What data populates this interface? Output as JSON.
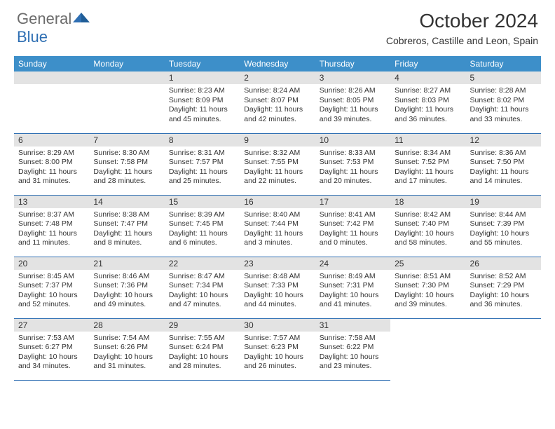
{
  "logo": {
    "text_gray": "General",
    "text_blue": "Blue"
  },
  "title": "October 2024",
  "location": "Cobreros, Castille and Leon, Spain",
  "colors": {
    "header_blue": "#3d8fc9",
    "cell_border": "#2f6fb3",
    "daynum_bg": "#e3e3e3",
    "logo_gray": "#6b6b6b",
    "logo_blue": "#2f6fb3",
    "text": "#333333",
    "background": "#ffffff"
  },
  "days_of_week": [
    "Sunday",
    "Monday",
    "Tuesday",
    "Wednesday",
    "Thursday",
    "Friday",
    "Saturday"
  ],
  "weeks": [
    [
      null,
      null,
      {
        "n": "1",
        "sr": "Sunrise: 8:23 AM",
        "ss": "Sunset: 8:09 PM",
        "dl": "Daylight: 11 hours and 45 minutes."
      },
      {
        "n": "2",
        "sr": "Sunrise: 8:24 AM",
        "ss": "Sunset: 8:07 PM",
        "dl": "Daylight: 11 hours and 42 minutes."
      },
      {
        "n": "3",
        "sr": "Sunrise: 8:26 AM",
        "ss": "Sunset: 8:05 PM",
        "dl": "Daylight: 11 hours and 39 minutes."
      },
      {
        "n": "4",
        "sr": "Sunrise: 8:27 AM",
        "ss": "Sunset: 8:03 PM",
        "dl": "Daylight: 11 hours and 36 minutes."
      },
      {
        "n": "5",
        "sr": "Sunrise: 8:28 AM",
        "ss": "Sunset: 8:02 PM",
        "dl": "Daylight: 11 hours and 33 minutes."
      }
    ],
    [
      {
        "n": "6",
        "sr": "Sunrise: 8:29 AM",
        "ss": "Sunset: 8:00 PM",
        "dl": "Daylight: 11 hours and 31 minutes."
      },
      {
        "n": "7",
        "sr": "Sunrise: 8:30 AM",
        "ss": "Sunset: 7:58 PM",
        "dl": "Daylight: 11 hours and 28 minutes."
      },
      {
        "n": "8",
        "sr": "Sunrise: 8:31 AM",
        "ss": "Sunset: 7:57 PM",
        "dl": "Daylight: 11 hours and 25 minutes."
      },
      {
        "n": "9",
        "sr": "Sunrise: 8:32 AM",
        "ss": "Sunset: 7:55 PM",
        "dl": "Daylight: 11 hours and 22 minutes."
      },
      {
        "n": "10",
        "sr": "Sunrise: 8:33 AM",
        "ss": "Sunset: 7:53 PM",
        "dl": "Daylight: 11 hours and 20 minutes."
      },
      {
        "n": "11",
        "sr": "Sunrise: 8:34 AM",
        "ss": "Sunset: 7:52 PM",
        "dl": "Daylight: 11 hours and 17 minutes."
      },
      {
        "n": "12",
        "sr": "Sunrise: 8:36 AM",
        "ss": "Sunset: 7:50 PM",
        "dl": "Daylight: 11 hours and 14 minutes."
      }
    ],
    [
      {
        "n": "13",
        "sr": "Sunrise: 8:37 AM",
        "ss": "Sunset: 7:48 PM",
        "dl": "Daylight: 11 hours and 11 minutes."
      },
      {
        "n": "14",
        "sr": "Sunrise: 8:38 AM",
        "ss": "Sunset: 7:47 PM",
        "dl": "Daylight: 11 hours and 8 minutes."
      },
      {
        "n": "15",
        "sr": "Sunrise: 8:39 AM",
        "ss": "Sunset: 7:45 PM",
        "dl": "Daylight: 11 hours and 6 minutes."
      },
      {
        "n": "16",
        "sr": "Sunrise: 8:40 AM",
        "ss": "Sunset: 7:44 PM",
        "dl": "Daylight: 11 hours and 3 minutes."
      },
      {
        "n": "17",
        "sr": "Sunrise: 8:41 AM",
        "ss": "Sunset: 7:42 PM",
        "dl": "Daylight: 11 hours and 0 minutes."
      },
      {
        "n": "18",
        "sr": "Sunrise: 8:42 AM",
        "ss": "Sunset: 7:40 PM",
        "dl": "Daylight: 10 hours and 58 minutes."
      },
      {
        "n": "19",
        "sr": "Sunrise: 8:44 AM",
        "ss": "Sunset: 7:39 PM",
        "dl": "Daylight: 10 hours and 55 minutes."
      }
    ],
    [
      {
        "n": "20",
        "sr": "Sunrise: 8:45 AM",
        "ss": "Sunset: 7:37 PM",
        "dl": "Daylight: 10 hours and 52 minutes."
      },
      {
        "n": "21",
        "sr": "Sunrise: 8:46 AM",
        "ss": "Sunset: 7:36 PM",
        "dl": "Daylight: 10 hours and 49 minutes."
      },
      {
        "n": "22",
        "sr": "Sunrise: 8:47 AM",
        "ss": "Sunset: 7:34 PM",
        "dl": "Daylight: 10 hours and 47 minutes."
      },
      {
        "n": "23",
        "sr": "Sunrise: 8:48 AM",
        "ss": "Sunset: 7:33 PM",
        "dl": "Daylight: 10 hours and 44 minutes."
      },
      {
        "n": "24",
        "sr": "Sunrise: 8:49 AM",
        "ss": "Sunset: 7:31 PM",
        "dl": "Daylight: 10 hours and 41 minutes."
      },
      {
        "n": "25",
        "sr": "Sunrise: 8:51 AM",
        "ss": "Sunset: 7:30 PM",
        "dl": "Daylight: 10 hours and 39 minutes."
      },
      {
        "n": "26",
        "sr": "Sunrise: 8:52 AM",
        "ss": "Sunset: 7:29 PM",
        "dl": "Daylight: 10 hours and 36 minutes."
      }
    ],
    [
      {
        "n": "27",
        "sr": "Sunrise: 7:53 AM",
        "ss": "Sunset: 6:27 PM",
        "dl": "Daylight: 10 hours and 34 minutes."
      },
      {
        "n": "28",
        "sr": "Sunrise: 7:54 AM",
        "ss": "Sunset: 6:26 PM",
        "dl": "Daylight: 10 hours and 31 minutes."
      },
      {
        "n": "29",
        "sr": "Sunrise: 7:55 AM",
        "ss": "Sunset: 6:24 PM",
        "dl": "Daylight: 10 hours and 28 minutes."
      },
      {
        "n": "30",
        "sr": "Sunrise: 7:57 AM",
        "ss": "Sunset: 6:23 PM",
        "dl": "Daylight: 10 hours and 26 minutes."
      },
      {
        "n": "31",
        "sr": "Sunrise: 7:58 AM",
        "ss": "Sunset: 6:22 PM",
        "dl": "Daylight: 10 hours and 23 minutes."
      },
      null,
      null
    ]
  ]
}
